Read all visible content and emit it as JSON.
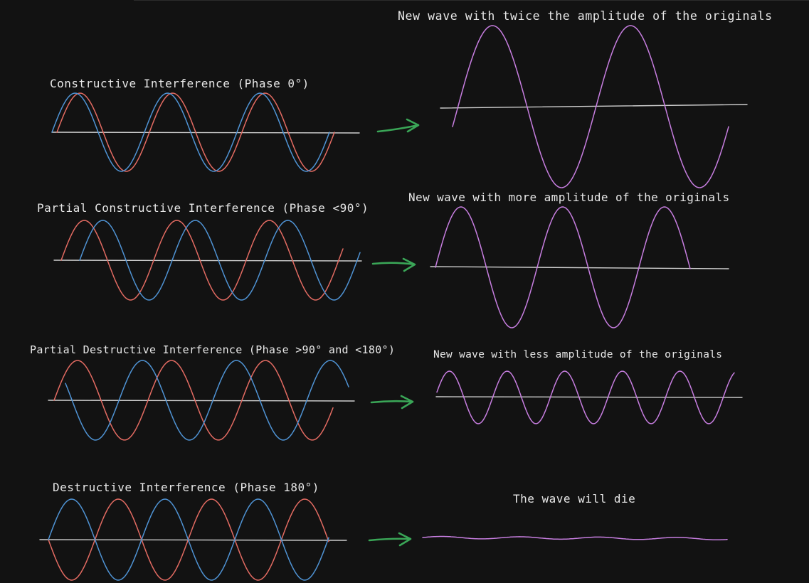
{
  "colors": {
    "background": "#121212",
    "wave_a": "#e36b62",
    "wave_b": "#4f93d4",
    "result": "#c77ee0",
    "arrow": "#3aa657",
    "axis": "#cfcfcf",
    "text": "#e8e8e8"
  },
  "rows": [
    {
      "id": "constructive",
      "title": "Constructive Interference (Phase 0°)",
      "result_caption": "New wave with twice the amplitude of the originals",
      "phase_deg": 0,
      "result_amplitude_ratio": 2.0
    },
    {
      "id": "partial-constructive",
      "title": "Partial Constructive Interference (Phase <90°)",
      "result_caption": "New wave with more amplitude of the originals",
      "phase_deg": 70,
      "result_amplitude_ratio": 1.5
    },
    {
      "id": "partial-destructive",
      "title": "Partial Destructive Interference (Phase >90° and <180°)",
      "result_caption": "New wave with less amplitude of the originals",
      "phase_deg": 145,
      "result_amplitude_ratio": 0.65
    },
    {
      "id": "destructive",
      "title": "Destructive Interference (Phase 180°)",
      "result_caption": "The wave will die",
      "phase_deg": 180,
      "result_amplitude_ratio": 0
    }
  ]
}
